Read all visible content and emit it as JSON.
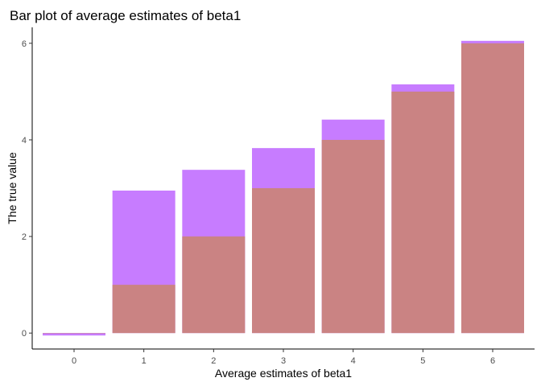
{
  "chart_data": {
    "type": "bar",
    "title": "Bar plot of average estimates of beta1",
    "xlabel": "Average estimates of beta1",
    "ylabel": "The true value",
    "categories": [
      "0",
      "1",
      "2",
      "3",
      "4",
      "5",
      "6"
    ],
    "series": [
      {
        "values": [
          -0.05,
          2.95,
          3.38,
          3.83,
          4.42,
          5.15,
          6.05
        ],
        "color": "#c77cff"
      },
      {
        "values": [
          0,
          1,
          2,
          3,
          4,
          5,
          6
        ],
        "color": "#ca8383"
      }
    ],
    "ylim": [
      -0.33,
      6.33
    ],
    "y_ticks": [
      0,
      2,
      4,
      6
    ],
    "grid": false,
    "legend": "none"
  }
}
